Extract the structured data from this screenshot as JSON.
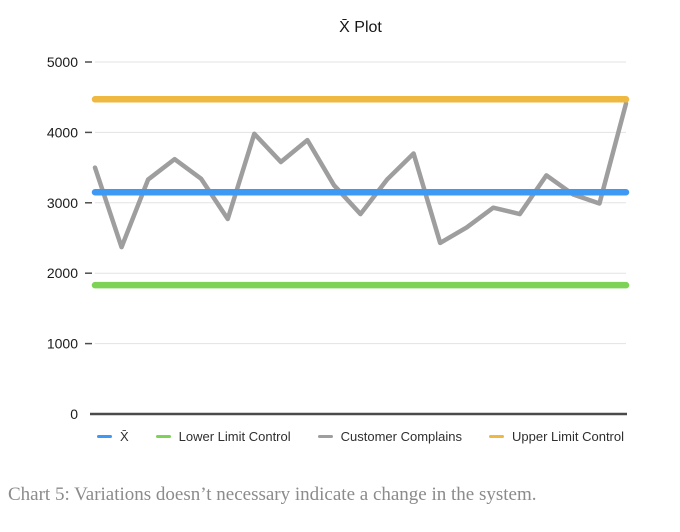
{
  "title": "X̄ Plot",
  "caption": "Chart 5: Variations doesn’t necessary indicate a change in the system.",
  "colors": {
    "xbar_line": "#3D99F4",
    "lower_limit_line": "#7ED356",
    "data_line": "#9E9E9E",
    "upper_limit_line": "#EFB840",
    "gridline": "#E3E3E3",
    "axis": "#4A4A4A",
    "tick": "#4D4D4D",
    "tick_label": "#1B1B1B"
  },
  "chart_data": {
    "type": "line",
    "title": "X̄ Plot",
    "xlabel": "",
    "ylabel": "",
    "ylim": [
      0,
      5000
    ],
    "yticks": [
      0,
      1000,
      2000,
      3000,
      4000,
      5000
    ],
    "grid": true,
    "legend_position": "bottom",
    "x": [
      1,
      2,
      3,
      4,
      5,
      6,
      7,
      8,
      9,
      10,
      11,
      12,
      13,
      14,
      15,
      16,
      17,
      18,
      19,
      20,
      21
    ],
    "series": [
      {
        "name": "X̄",
        "type": "constant",
        "value": 3150,
        "color": "#3D99F4"
      },
      {
        "name": "Lower Limit Control",
        "type": "constant",
        "value": 1830,
        "color": "#7ED356"
      },
      {
        "name": "Customer Complains",
        "type": "line",
        "color": "#9E9E9E",
        "values": [
          3500,
          2370,
          3330,
          3620,
          3340,
          2770,
          3980,
          3580,
          3890,
          3250,
          2840,
          3330,
          3700,
          2430,
          2650,
          2930,
          2840,
          3390,
          3120,
          2990,
          4410
        ]
      },
      {
        "name": "Upper Limit Control",
        "type": "constant",
        "value": 4470,
        "color": "#EFB840"
      }
    ]
  }
}
